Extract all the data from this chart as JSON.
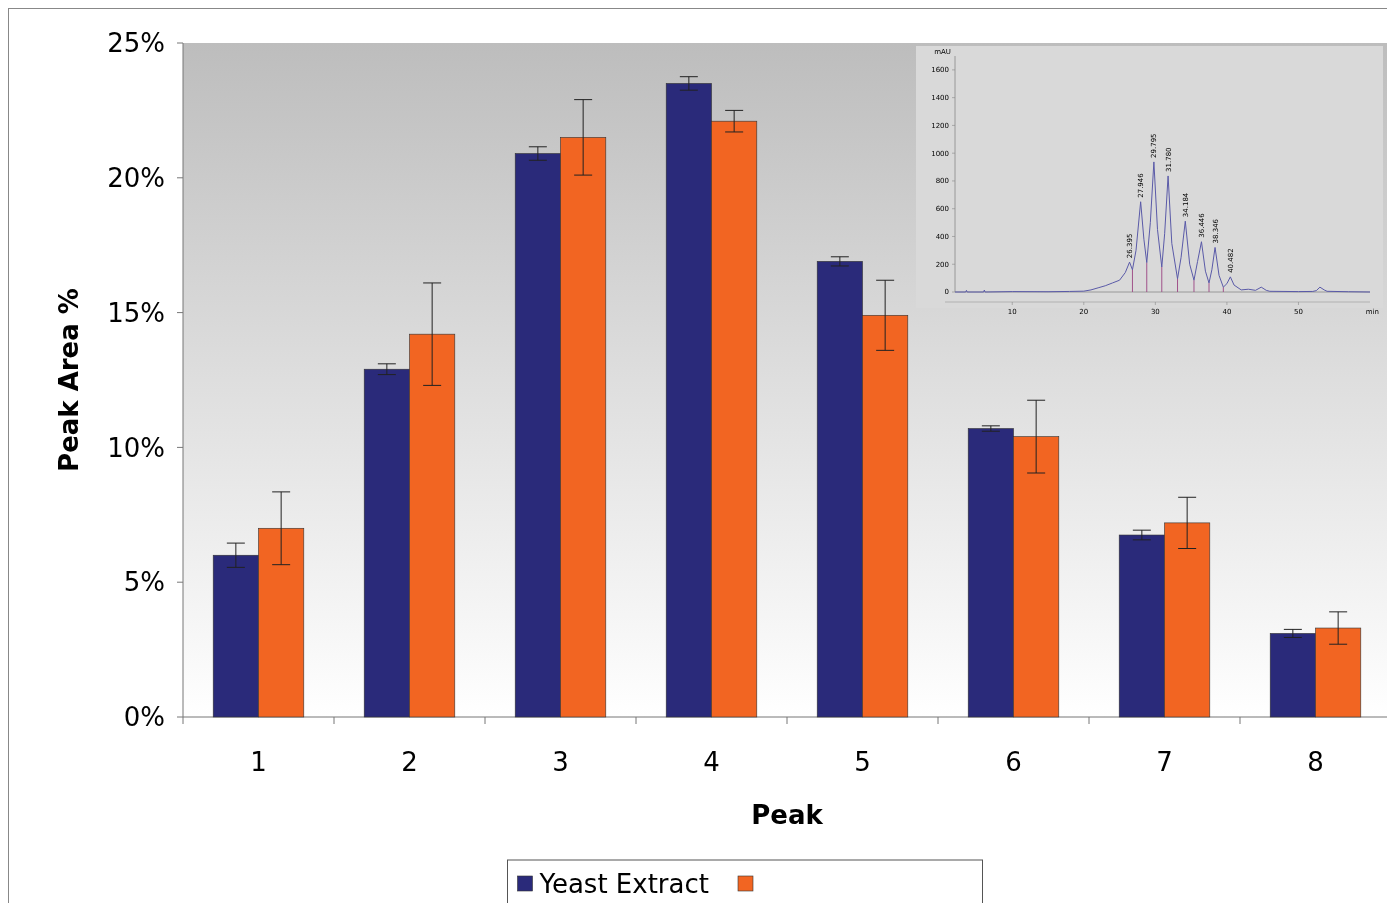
{
  "chart_data": [
    {
      "type": "bar",
      "xlabel": "Peak",
      "ylabel": "Peak Area %",
      "categories": [
        "1",
        "2",
        "3",
        "4",
        "5",
        "6",
        "7",
        "8"
      ],
      "series": [
        {
          "name": "Yeast Extract",
          "color": "#2a2a7a",
          "values": [
            6.0,
            12.9,
            20.9,
            23.5,
            16.9,
            10.7,
            6.75,
            3.1
          ],
          "errors": [
            0.45,
            0.2,
            0.25,
            0.25,
            0.17,
            0.1,
            0.18,
            0.15
          ]
        },
        {
          "color": "#f26522",
          "values": [
            7.0,
            14.2,
            21.5,
            22.1,
            14.9,
            10.4,
            7.2,
            3.3
          ],
          "errors": [
            1.35,
            1.9,
            1.4,
            0.4,
            1.3,
            1.35,
            0.95,
            0.6
          ]
        }
      ],
      "ylim": [
        0,
        25
      ],
      "yticks": [
        {
          "value": 0,
          "label": "0%"
        },
        {
          "value": 5,
          "label": "5%"
        },
        {
          "value": 10,
          "label": "10%"
        },
        {
          "value": 15,
          "label": "15%"
        },
        {
          "value": 20,
          "label": "20%"
        },
        {
          "value": 25,
          "label": "25%"
        }
      ],
      "grid": false,
      "legend": "bottom"
    },
    {
      "type": "line",
      "xlabel": "min",
      "ylabel": "mAU",
      "series": [
        {
          "color": "#5a5aa8",
          "x": [
            2,
            3.5,
            3.6,
            3.7,
            6,
            6.1,
            6.2,
            10,
            15,
            18,
            20,
            21,
            22,
            23,
            24,
            25,
            25.8,
            26.395,
            26.8,
            27.3,
            27.946,
            28.4,
            28.8,
            29.3,
            29.795,
            30.3,
            30.9,
            31.3,
            31.78,
            32.3,
            33.1,
            33.6,
            34.184,
            34.8,
            35.4,
            35.9,
            36.446,
            37,
            37.5,
            37.9,
            38.346,
            38.9,
            39.5,
            40,
            40.482,
            41,
            42,
            43,
            44,
            44.8,
            45.5,
            46,
            50,
            52,
            52.5,
            53,
            53.6,
            54,
            57,
            60
          ],
          "values": [
            0,
            0,
            12,
            0,
            0,
            14,
            0,
            3,
            2,
            4,
            6,
            15,
            30,
            45,
            65,
            85,
            140,
            215,
            160,
            300,
            650,
            380,
            212,
            500,
            937,
            450,
            180,
            420,
            836,
            350,
            95,
            250,
            510,
            200,
            85,
            220,
            362,
            150,
            65,
            160,
            321,
            120,
            35,
            60,
            109,
            50,
            15,
            20,
            12,
            35,
            12,
            5,
            3,
            4,
            10,
            35,
            15,
            5,
            2,
            0
          ]
        }
      ],
      "xlim": [
        2,
        60
      ],
      "xticks": [
        10,
        20,
        30,
        40,
        50
      ],
      "ylim": [
        0,
        1700
      ],
      "yticks": [
        0,
        200,
        400,
        600,
        800,
        1000,
        1200,
        1400,
        1600
      ],
      "annotations": [
        {
          "text": "26.395",
          "x": 26.395,
          "y": 215
        },
        {
          "text": "27.946",
          "x": 27.946,
          "y": 650
        },
        {
          "text": "29.795",
          "x": 29.795,
          "y": 937
        },
        {
          "text": "31.780",
          "x": 31.78,
          "y": 836
        },
        {
          "text": "34.184",
          "x": 34.184,
          "y": 510
        },
        {
          "text": "36.446",
          "x": 36.446,
          "y": 362
        },
        {
          "text": "38.346",
          "x": 38.346,
          "y": 321
        },
        {
          "text": "40.482",
          "x": 40.482,
          "y": 109
        }
      ],
      "grid": false,
      "legend": false
    }
  ]
}
